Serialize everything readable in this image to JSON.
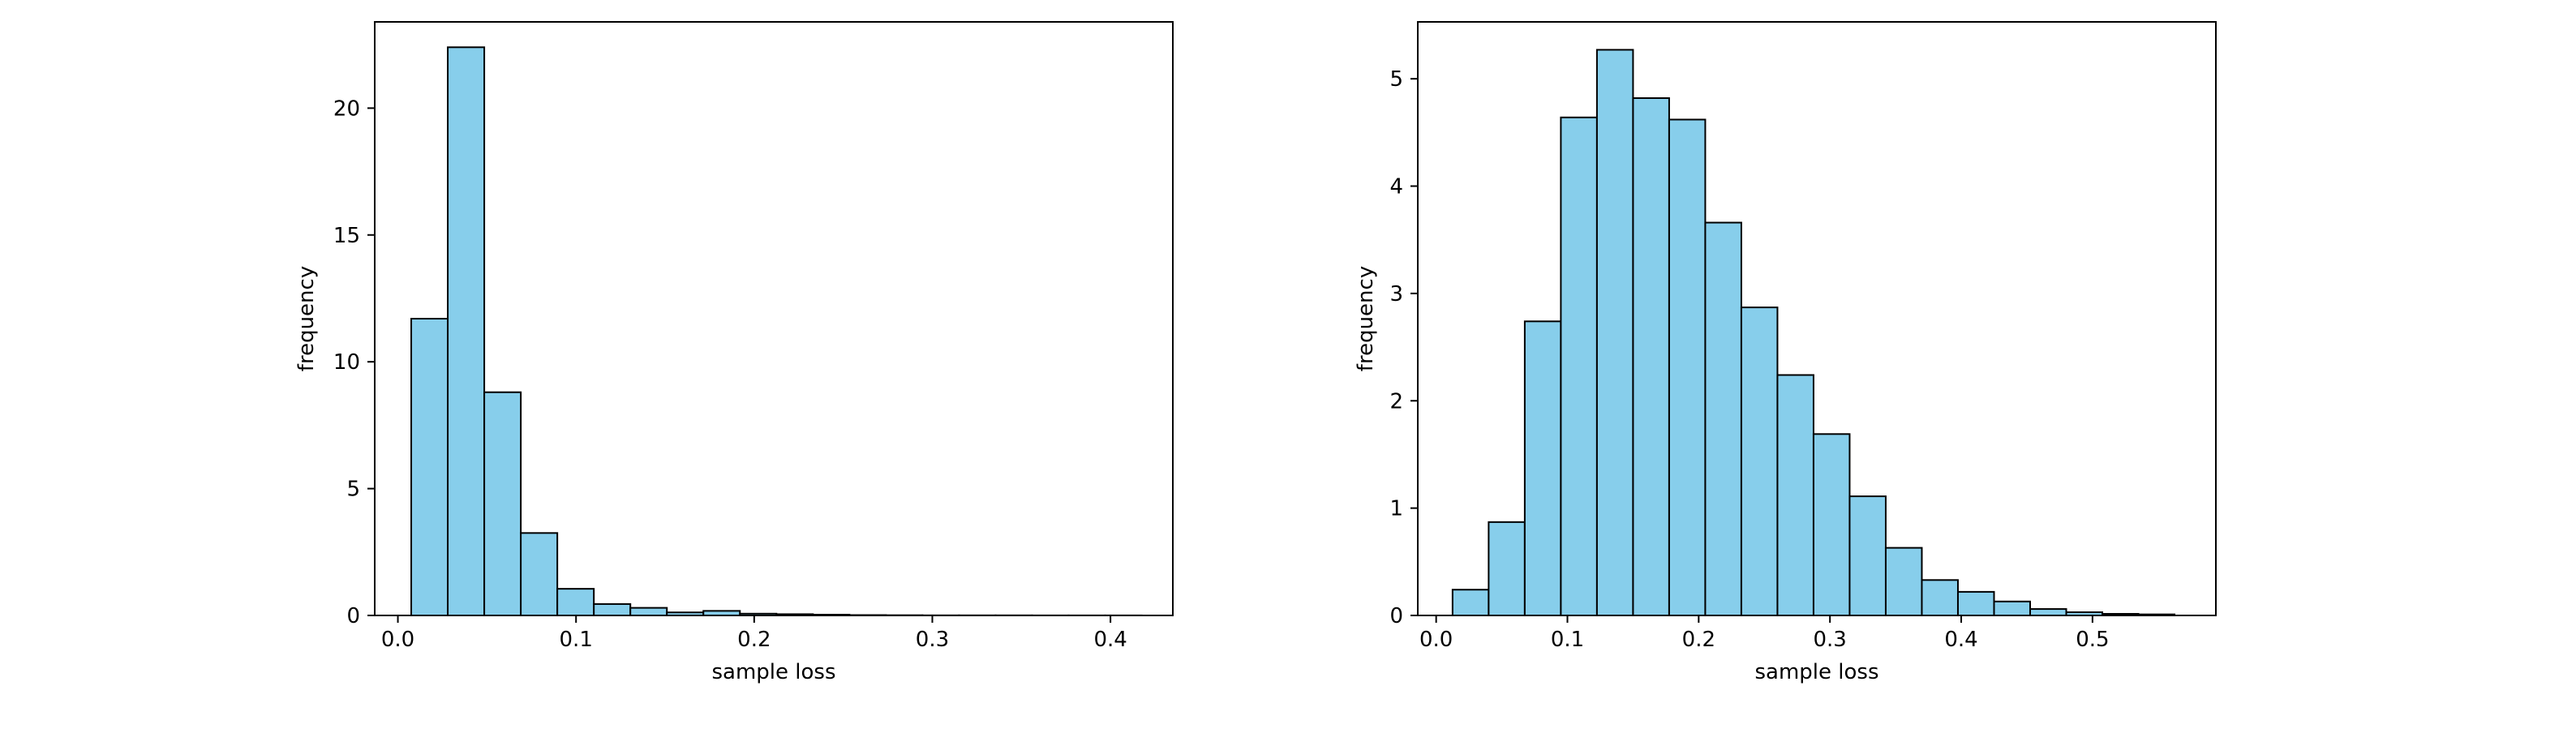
{
  "chart_data": [
    {
      "type": "bar",
      "subtype": "histogram",
      "title": "",
      "xlabel": "sample loss",
      "ylabel": "frequency",
      "xlim": [
        -0.013,
        0.435
      ],
      "ylim": [
        0,
        23.4
      ],
      "xticks": [
        0.0,
        0.1,
        0.2,
        0.3,
        0.4
      ],
      "xtick_labels": [
        "0.0",
        "0.1",
        "0.2",
        "0.3",
        "0.4"
      ],
      "yticks": [
        0,
        5,
        10,
        15,
        20
      ],
      "ytick_labels": [
        "0",
        "5",
        "10",
        "15",
        "20"
      ],
      "bin_edges": [
        0.0075,
        0.028,
        0.0485,
        0.069,
        0.0895,
        0.11,
        0.1305,
        0.151,
        0.1715,
        0.192,
        0.2125,
        0.233,
        0.2535,
        0.274,
        0.2945,
        0.315,
        0.3355,
        0.356,
        0.3765,
        0.397,
        0.4175
      ],
      "values": [
        11.7,
        22.4,
        8.8,
        3.25,
        1.05,
        0.45,
        0.3,
        0.12,
        0.18,
        0.07,
        0.05,
        0.03,
        0.015,
        0.01,
        0.005,
        0.005,
        0.005,
        0.003,
        0.003,
        0.003
      ],
      "bar_color": "#87ceeb",
      "edge_color": "#000000",
      "grid": false,
      "legend": "none"
    },
    {
      "type": "bar",
      "subtype": "histogram",
      "title": "",
      "xlabel": "sample loss",
      "ylabel": "frequency",
      "xlim": [
        -0.014,
        0.594
      ],
      "ylim": [
        0,
        5.53
      ],
      "xticks": [
        0.0,
        0.1,
        0.2,
        0.3,
        0.4,
        0.5
      ],
      "xtick_labels": [
        "0.0",
        "0.1",
        "0.2",
        "0.3",
        "0.4",
        "0.5"
      ],
      "yticks": [
        0,
        1,
        2,
        3,
        4,
        5
      ],
      "ytick_labels": [
        "0",
        "1",
        "2",
        "3",
        "4",
        "5"
      ],
      "bin_edges": [
        0.0125,
        0.04,
        0.0675,
        0.095,
        0.1225,
        0.15,
        0.1775,
        0.205,
        0.2325,
        0.26,
        0.2875,
        0.315,
        0.3425,
        0.37,
        0.3975,
        0.425,
        0.4525,
        0.48,
        0.5075,
        0.535,
        0.5625
      ],
      "values": [
        0.24,
        0.87,
        2.74,
        4.64,
        5.27,
        4.82,
        4.62,
        3.66,
        2.87,
        2.24,
        1.69,
        1.11,
        0.63,
        0.33,
        0.22,
        0.13,
        0.06,
        0.03,
        0.015,
        0.01
      ],
      "bar_color": "#87ceeb",
      "edge_color": "#000000",
      "grid": false,
      "legend": "none"
    }
  ]
}
